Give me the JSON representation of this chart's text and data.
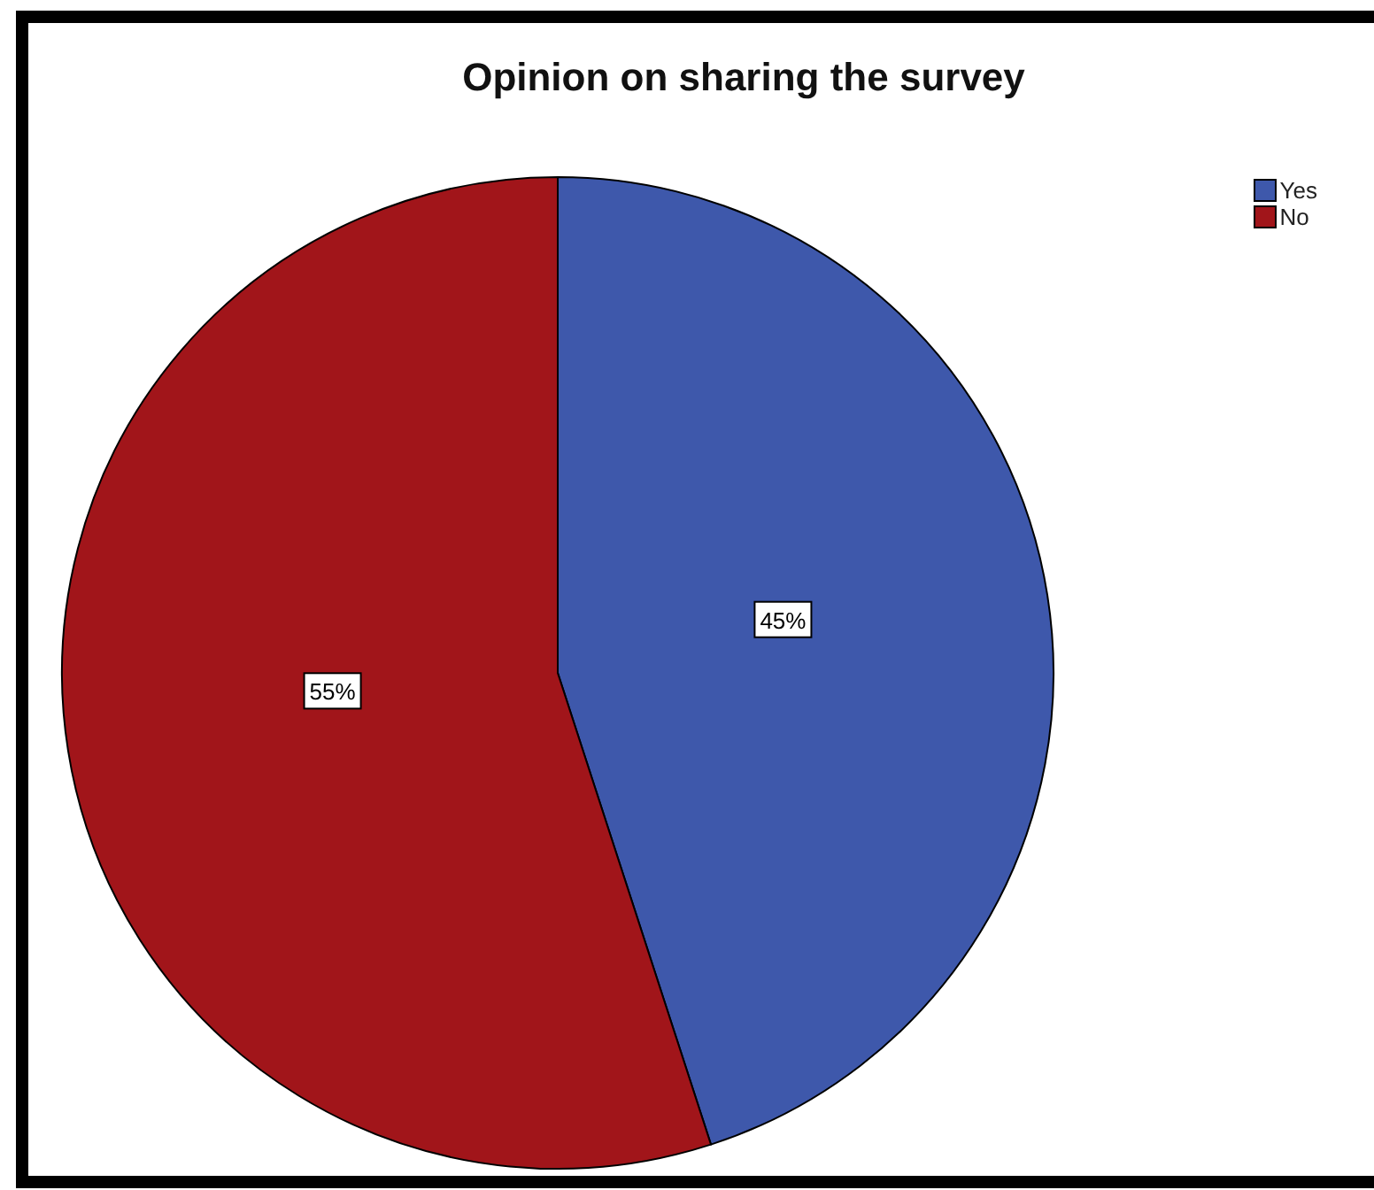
{
  "chart_data": {
    "type": "pie",
    "title": "Opinion on sharing the survey",
    "categories": [
      "Yes",
      "No"
    ],
    "values": [
      45,
      55
    ],
    "colors": [
      "#3e58ab",
      "#a1151a"
    ],
    "value_labels": [
      "45%",
      "55%"
    ],
    "legend": "top right"
  }
}
